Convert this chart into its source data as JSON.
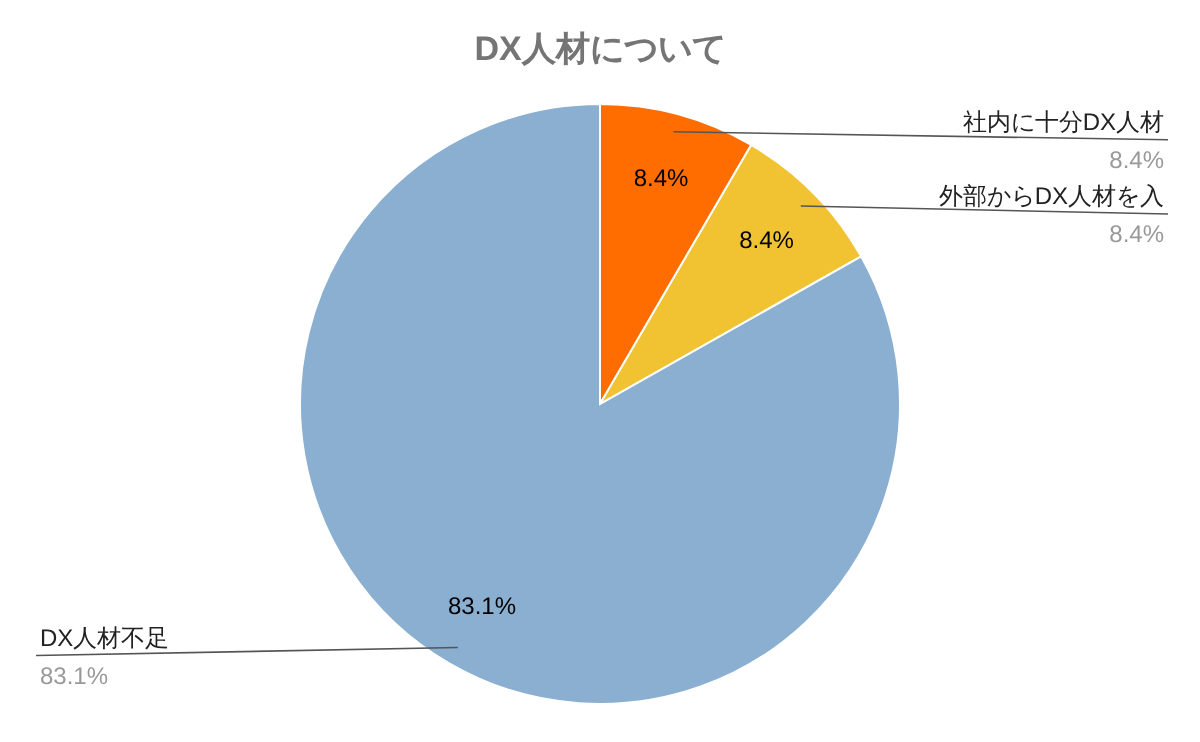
{
  "chart_data": {
    "type": "pie",
    "title": "DX人材について",
    "categories": [
      "社内に十分DX人材",
      "外部からDX人材を入",
      "DX人材不足"
    ],
    "values": [
      8.4,
      8.4,
      83.1
    ],
    "colors": [
      "#ff6d01",
      "#f1c232",
      "#8aafd0"
    ],
    "value_labels": [
      "8.4%",
      "8.4%",
      "83.1%"
    ],
    "data_labels": true
  }
}
